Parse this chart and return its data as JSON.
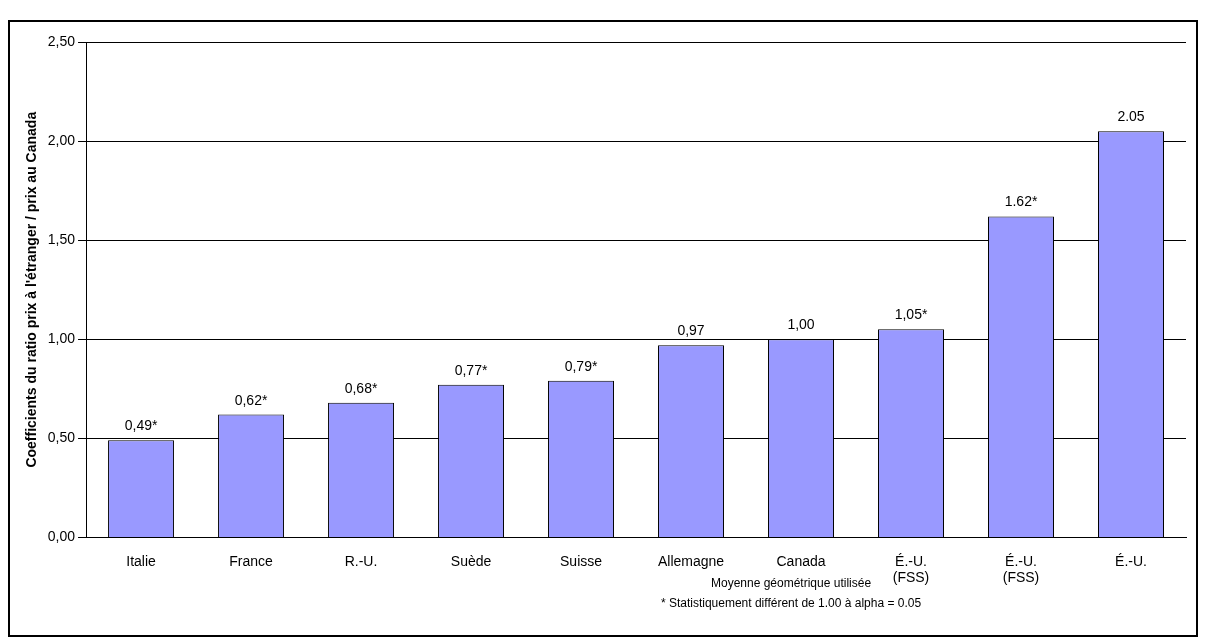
{
  "chart_data": {
    "type": "bar",
    "ylabel": "Coefficients du ratio prix à l'étranger / prix au Canada",
    "categories": [
      "Italie",
      "France",
      "R.-U.",
      "Suède",
      "Suisse",
      "Allemagne",
      "Canada",
      "É.-U. (FSS)",
      "É.-U. (FSS)",
      "É.-U."
    ],
    "values": [
      0.49,
      0.62,
      0.68,
      0.77,
      0.79,
      0.97,
      1.0,
      1.05,
      1.62,
      2.05
    ],
    "value_labels": [
      "0,49*",
      "0,62*",
      "0,68*",
      "0,77*",
      "0,79*",
      "0,97",
      "1,00",
      "1,05*",
      "1.62*",
      "2.05"
    ],
    "color": "#9999ff",
    "ylim": [
      0,
      2.5
    ],
    "yticks": [
      {
        "value": 0,
        "label": "0,00"
      },
      {
        "value": 0.5,
        "label": "0,50"
      },
      {
        "value": 1,
        "label": "1,00"
      },
      {
        "value": 1.5,
        "label": "1,50"
      },
      {
        "value": 2,
        "label": "2,00"
      },
      {
        "value": 2.5,
        "label": "2,50"
      }
    ],
    "grid": "y",
    "legend": false,
    "annotations": [
      "Moyenne géométrique utilisée",
      "* Statistiquement différent de 1.00 à alpha = 0.05"
    ]
  }
}
